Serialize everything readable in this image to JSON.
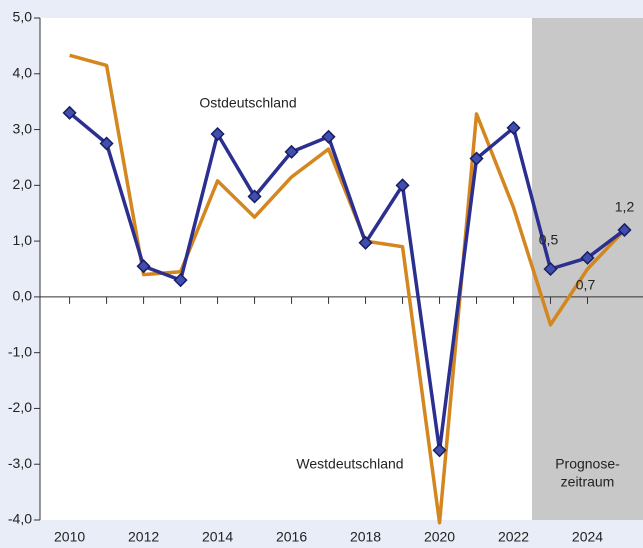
{
  "chart_data": {
    "type": "line",
    "x": [
      2010,
      2011,
      2012,
      2013,
      2014,
      2015,
      2016,
      2017,
      2018,
      2019,
      2020,
      2021,
      2022,
      2023,
      2024,
      2025
    ],
    "series": [
      {
        "name": "Westdeutschland",
        "color": "#d4861f",
        "markers": false,
        "values": [
          4.33,
          4.15,
          0.4,
          0.45,
          2.08,
          1.43,
          2.15,
          2.65,
          1.0,
          0.9,
          -4.05,
          3.28,
          1.6,
          -0.5,
          0.5,
          1.2
        ]
      },
      {
        "name": "Ostdeutschland",
        "color": "#2b2f8f",
        "markers": true,
        "values": [
          3.3,
          2.75,
          0.55,
          0.3,
          2.92,
          1.8,
          2.6,
          2.87,
          0.97,
          2.0,
          -2.75,
          2.48,
          3.03,
          0.5,
          0.7,
          1.2
        ],
        "value_labels": [
          null,
          null,
          null,
          null,
          null,
          null,
          null,
          null,
          null,
          null,
          null,
          null,
          null,
          "0,5",
          "0,7",
          "1,2"
        ]
      }
    ],
    "xlim": [
      2009.2,
      2025.5
    ],
    "xticks": [
      2010,
      2012,
      2014,
      2016,
      2018,
      2020,
      2022,
      2024
    ],
    "ylim": [
      -4,
      5
    ],
    "yticks": [
      {
        "value": -4,
        "label": "-4,0"
      },
      {
        "value": -3,
        "label": "-3,0"
      },
      {
        "value": -2,
        "label": "-2,0"
      },
      {
        "value": -1,
        "label": "-1,0"
      },
      {
        "value": 0,
        "label": "0,0"
      },
      {
        "value": 1,
        "label": "1,0"
      },
      {
        "value": 2,
        "label": "2,0"
      },
      {
        "value": 3,
        "label": "3,0"
      },
      {
        "value": 4,
        "label": "4,0"
      },
      {
        "value": 5,
        "label": "5,0"
      }
    ],
    "forecast_region": {
      "xlim": [
        2022.5,
        2025.5
      ],
      "label": [
        "Prognose-",
        "zeitraum"
      ]
    }
  }
}
